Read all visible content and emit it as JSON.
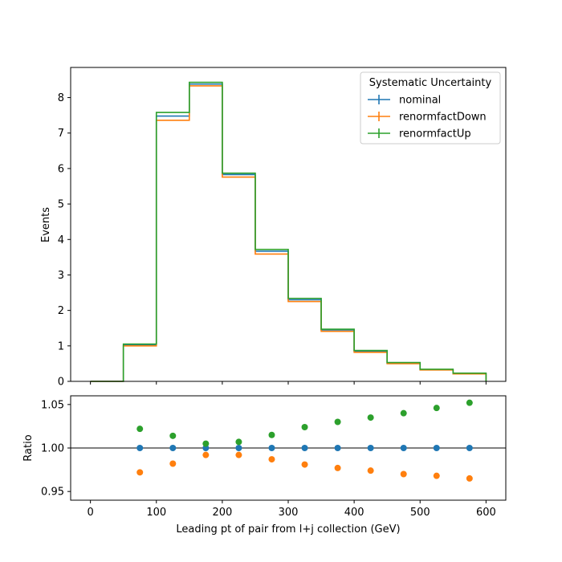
{
  "chart_data": [
    {
      "type": "line",
      "drawstyle": "steps",
      "xlabel": "",
      "ylabel": "Events",
      "xlim": [
        -30,
        630
      ],
      "ylim": [
        0,
        8.85
      ],
      "yticks": [
        0,
        1,
        2,
        3,
        4,
        5,
        6,
        7,
        8
      ],
      "grid": false,
      "legend_title": "Systematic Uncertainty",
      "legend_position": "top-right",
      "bin_edges": [
        0,
        50,
        100,
        150,
        200,
        250,
        300,
        350,
        400,
        450,
        500,
        550,
        600
      ],
      "series": [
        {
          "name": "nominal",
          "color": "#1f77b4",
          "values": [
            0.0,
            1.03,
            7.48,
            8.38,
            5.83,
            3.67,
            2.3,
            1.45,
            0.85,
            0.52,
            0.33,
            0.22
          ]
        },
        {
          "name": "renormfactDown",
          "color": "#ff7f0e",
          "values": [
            0.0,
            1.0,
            7.36,
            8.33,
            5.76,
            3.59,
            2.25,
            1.41,
            0.82,
            0.5,
            0.32,
            0.21
          ]
        },
        {
          "name": "renormfactUp",
          "color": "#2ca02c",
          "values": [
            0.0,
            1.05,
            7.58,
            8.43,
            5.87,
            3.72,
            2.34,
            1.47,
            0.87,
            0.53,
            0.34,
            0.23
          ]
        }
      ]
    },
    {
      "type": "scatter",
      "xlabel": "Leading pt of pair from l+j collection (GeV)",
      "ylabel": "Ratio",
      "xlim": [
        -30,
        630
      ],
      "ylim": [
        0.94,
        1.06
      ],
      "xticks": [
        0,
        100,
        200,
        300,
        400,
        500,
        600
      ],
      "yticks": [
        0.95,
        1.0,
        1.05
      ],
      "ytick_labels": [
        "0.95",
        "1.00",
        "1.05"
      ],
      "reference_line": 1.0,
      "grid": false,
      "x": [
        75,
        125,
        175,
        225,
        275,
        325,
        375,
        425,
        475,
        525,
        575
      ],
      "series": [
        {
          "name": "nominal",
          "color": "#1f77b4",
          "values": [
            1.0,
            1.0,
            1.0,
            1.0,
            1.0,
            1.0,
            1.0,
            1.0,
            1.0,
            1.0,
            1.0
          ]
        },
        {
          "name": "renormfactDown",
          "color": "#ff7f0e",
          "values": [
            0.972,
            0.982,
            0.992,
            0.992,
            0.987,
            0.981,
            0.977,
            0.974,
            0.97,
            0.968,
            0.965
          ]
        },
        {
          "name": "renormfactUp",
          "color": "#2ca02c",
          "values": [
            1.022,
            1.014,
            1.005,
            1.007,
            1.015,
            1.024,
            1.03,
            1.035,
            1.04,
            1.046,
            1.052
          ]
        }
      ]
    }
  ]
}
